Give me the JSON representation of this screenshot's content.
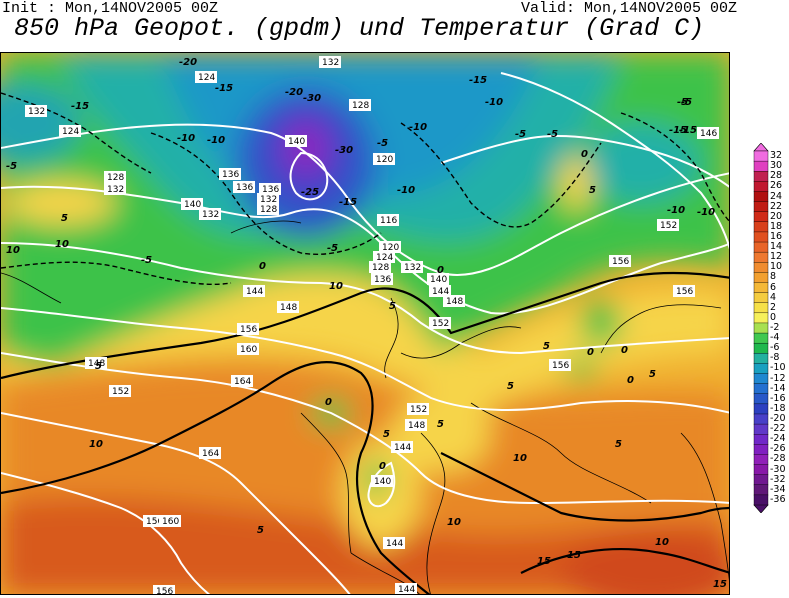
{
  "header": {
    "init_label": "Init : Mon,14NOV2005 00Z",
    "valid_label": "Valid: Mon,14NOV2005 00Z",
    "title": "850 hPa Geopot. (gpdm) und Temperatur (Grad C)"
  },
  "map": {
    "geopotential_labels": [
      "132",
      "124",
      "132",
      "124",
      "128",
      "128",
      "132",
      "136",
      "140",
      "140",
      "136",
      "132",
      "128",
      "136",
      "132",
      "120",
      "116",
      "120",
      "124",
      "128",
      "132",
      "136",
      "140",
      "144",
      "148",
      "152",
      "148",
      "144",
      "156",
      "160",
      "164",
      "164",
      "156",
      "148",
      "152",
      "156",
      "160",
      "152",
      "148",
      "144",
      "140",
      "144",
      "144",
      "156",
      "156",
      "156",
      "152",
      "146"
    ],
    "temperature_labels": [
      "-20",
      "-20",
      "-30",
      "-25",
      "-30",
      "-15",
      "-10",
      "-5",
      "-15",
      "-10",
      "-5",
      "0",
      "5",
      "10",
      "-5",
      "-10",
      "-15",
      "-10",
      "-5",
      "0",
      "5",
      "-15",
      "-10",
      "-5",
      "-15",
      "-5",
      "-5",
      "0",
      "5",
      "10",
      "5",
      "0",
      "0",
      "5",
      "5",
      "10",
      "10",
      "5",
      "5",
      "0",
      "10",
      "15",
      "5",
      "5",
      "0",
      "0",
      "5",
      "-5",
      "-10",
      "-15",
      "-10",
      "10",
      "15",
      "10",
      "15"
    ],
    "contour_colors": {
      "geopotential": "#ffffff",
      "temperature_positive": "#000000",
      "temperature_negative": "#000000"
    }
  },
  "colorbar": {
    "labels": [
      "32",
      "30",
      "28",
      "26",
      "24",
      "22",
      "20",
      "18",
      "16",
      "14",
      "12",
      "10",
      "8",
      "6",
      "4",
      "2",
      "0",
      "-2",
      "-4",
      "-6",
      "-8",
      "-10",
      "-12",
      "-14",
      "-16",
      "-18",
      "-20",
      "-22",
      "-24",
      "-26",
      "-28",
      "-30",
      "-32",
      "-34",
      "-36"
    ],
    "colors": [
      "#f06ce0",
      "#e040c0",
      "#c02050",
      "#c01830",
      "#b01010",
      "#c01c14",
      "#d02a18",
      "#d8401c",
      "#e05020",
      "#e86428",
      "#ee7830",
      "#f08c30",
      "#f2a030",
      "#f4b838",
      "#f4cc40",
      "#f6e048",
      "#f6f05a",
      "#a8e050",
      "#40c850",
      "#20b84e",
      "#24b0a0",
      "#1aa0c0",
      "#2088d0",
      "#2470d0",
      "#2858c8",
      "#2c40c0",
      "#4840c8",
      "#6038c8",
      "#7028c8",
      "#8020c0",
      "#9020b8",
      "#8818a8",
      "#701890",
      "#601878",
      "#4a1068"
    ]
  }
}
